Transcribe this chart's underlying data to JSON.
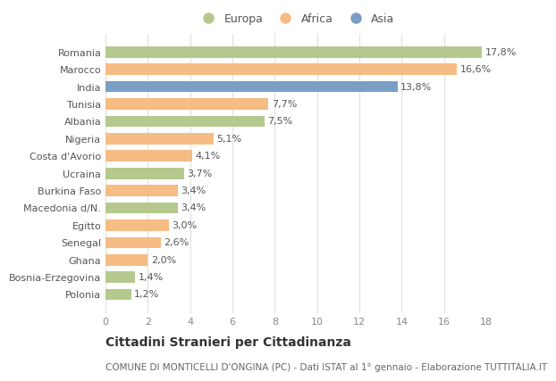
{
  "categories": [
    "Romania",
    "Marocco",
    "India",
    "Tunisia",
    "Albania",
    "Nigeria",
    "Costa d'Avorio",
    "Ucraina",
    "Burkina Faso",
    "Macedonia d/N.",
    "Egitto",
    "Senegal",
    "Ghana",
    "Bosnia-Erzegovina",
    "Polonia"
  ],
  "values": [
    17.8,
    16.6,
    13.8,
    7.7,
    7.5,
    5.1,
    4.1,
    3.7,
    3.4,
    3.4,
    3.0,
    2.6,
    2.0,
    1.4,
    1.2
  ],
  "labels": [
    "17,8%",
    "16,6%",
    "13,8%",
    "7,7%",
    "7,5%",
    "5,1%",
    "4,1%",
    "3,7%",
    "3,4%",
    "3,4%",
    "3,0%",
    "2,6%",
    "2,0%",
    "1,4%",
    "1,2%"
  ],
  "continents": [
    "Europa",
    "Africa",
    "Asia",
    "Africa",
    "Europa",
    "Africa",
    "Africa",
    "Europa",
    "Africa",
    "Europa",
    "Africa",
    "Africa",
    "Africa",
    "Europa",
    "Europa"
  ],
  "colors": {
    "Europa": "#b5c98e",
    "Africa": "#f5bc84",
    "Asia": "#7b9ec4"
  },
  "legend_labels": [
    "Europa",
    "Africa",
    "Asia"
  ],
  "legend_colors": [
    "#b5c98e",
    "#f5bc84",
    "#7b9ec4"
  ],
  "title": "Cittadini Stranieri per Cittadinanza",
  "subtitle": "COMUNE DI MONTICELLI D'ONGINA (PC) - Dati ISTAT al 1° gennaio - Elaborazione TUTTITALIA.IT",
  "xlim": [
    0,
    18
  ],
  "xticks": [
    0,
    2,
    4,
    6,
    8,
    10,
    12,
    14,
    16,
    18
  ],
  "background_color": "#ffffff",
  "grid_color": "#e0e0e0",
  "bar_height": 0.65,
  "label_fontsize": 8.0,
  "tick_fontsize": 8.0,
  "title_fontsize": 10.0,
  "subtitle_fontsize": 7.5,
  "legend_fontsize": 9.0
}
